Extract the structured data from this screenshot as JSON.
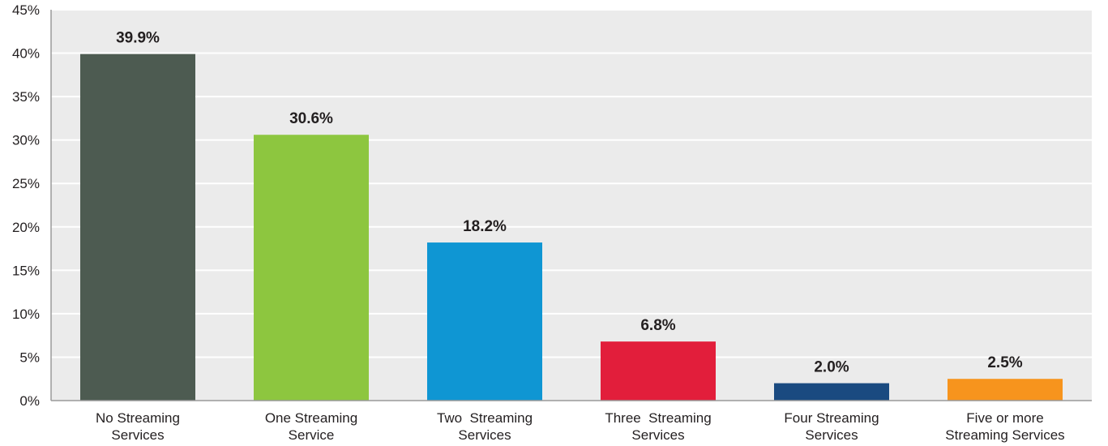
{
  "chart_data": {
    "type": "bar",
    "categories": [
      [
        "No Streaming",
        "Services"
      ],
      [
        "One Streaming",
        "Service"
      ],
      [
        "Two  Streaming",
        "Services"
      ],
      [
        "Three  Streaming",
        "Services"
      ],
      [
        "Four Streaming",
        "Services"
      ],
      [
        "Five or more",
        "Streaming Services"
      ]
    ],
    "values": [
      39.9,
      30.6,
      18.2,
      6.8,
      2.0,
      2.5
    ],
    "value_labels": [
      "39.9%",
      "30.6%",
      "18.2%",
      "6.8%",
      "2.0%",
      "2.5%"
    ],
    "colors": [
      "#4d5b51",
      "#8dc63f",
      "#0f96d3",
      "#e21e3b",
      "#1a4a80",
      "#f7941d"
    ],
    "ylim": [
      0,
      45
    ],
    "yticks": [
      0,
      5,
      10,
      15,
      20,
      25,
      30,
      35,
      40,
      45
    ],
    "ytick_labels": [
      "0%",
      "5%",
      "10%",
      "15%",
      "20%",
      "25%",
      "30%",
      "35%",
      "40%",
      "45%"
    ],
    "grid": true,
    "plot_background": "#ebebeb",
    "title": "",
    "xlabel": "",
    "ylabel": ""
  }
}
